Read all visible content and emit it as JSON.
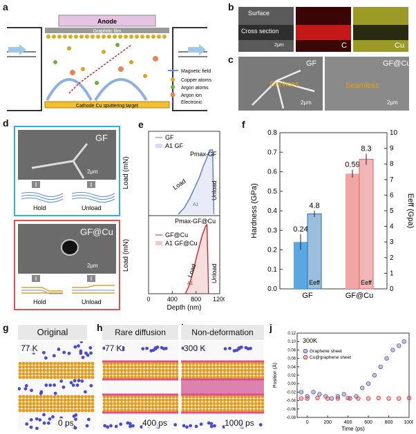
{
  "panels": {
    "a": {
      "label": "a",
      "anode": "Anode",
      "film": "Graphitic film",
      "target": "Cathode Cu sputtering target",
      "legend": [
        "Magnetic field",
        "Copper atoms",
        "Argon atoms",
        "Argon ion",
        "Electronic"
      ],
      "legend_colors": [
        "#5b8fd6",
        "#e0a020",
        "#6fae3a",
        "#e8845a",
        "#666666"
      ]
    },
    "b": {
      "label": "b",
      "surface": "Surface",
      "cross_section": "Cross section",
      "scale": "2μm",
      "map_c": "C",
      "map_cu": "Cu"
    },
    "c": {
      "label": "c",
      "gf": "GF",
      "crevices": "Crevices",
      "scale1": "2μm",
      "gfcu": "GF@Cu",
      "seamless": "Seamless",
      "scale2": "2μm"
    },
    "d": {
      "label": "d",
      "gf": "GF",
      "scale1": "2μm",
      "hold1": "Hold",
      "unload1": "Unload",
      "gfcu": "GF@Cu",
      "scale2": "2μm",
      "hold2": "Hold",
      "unload2": "Unload"
    },
    "e": {
      "label": "e",
      "top_ylabel": "Load (mN)",
      "bot_ylabel": "Load (mN)",
      "xlabel": "Depth (nm)",
      "top_legend": [
        "GF",
        "A1 GF"
      ],
      "bot_legend": [
        "GF@Cu",
        "A1 GF@Cu"
      ],
      "pmax_gf": "Pmax-GF",
      "pmax_gfcu": "Pmax-GF@Cu",
      "load_label": "Load",
      "unload_label": "Unload",
      "a1_label": "A1"
    },
    "f": {
      "label": "f",
      "eff": "Eeff"
    },
    "g": {
      "label": "g",
      "title": "Original",
      "temp": "77 K",
      "time": "0 ps"
    },
    "h": {
      "label": "h",
      "title": "Rare diffusion",
      "temp": "77 K",
      "time": "400 ps"
    },
    "i": {
      "label": "i",
      "title": "Non-deformation",
      "temp": "300 K",
      "time": "1000 ps"
    },
    "j": {
      "label": "j",
      "temp": "300K",
      "legend": [
        "Graphene sheet",
        "Cu@graphene sheet"
      ]
    }
  },
  "chart_data": [
    {
      "id": "e",
      "type": "line",
      "xlabel": "Depth (nm)",
      "xlim": [
        0,
        1200
      ],
      "xticks": [
        0,
        400,
        800,
        1200
      ],
      "subplots": [
        {
          "ylabel": "Load (mN)",
          "series": [
            {
              "name": "GF",
              "color": "#5577cc",
              "x": [
                500,
                600,
                700,
                780,
                860,
                920,
                980,
                1030,
                1080,
                1090,
                1100
              ],
              "y": [
                0,
                0.3,
                0.8,
                1.3,
                1.8,
                2.3,
                2.7,
                3.1,
                3.1,
                1.5,
                0
              ]
            }
          ]
        },
        {
          "ylabel": "Load (mN)",
          "series": [
            {
              "name": "GF@Cu",
              "color": "#cc2222",
              "x": [
                620,
                680,
                720,
                760,
                800,
                850,
                900,
                960,
                985,
                1000,
                1010
              ],
              "y": [
                0,
                1.0,
                2.0,
                3.2,
                4.5,
                6.0,
                7.5,
                8.8,
                9.0,
                4.0,
                0
              ]
            }
          ]
        }
      ]
    },
    {
      "id": "f",
      "type": "bar",
      "categories": [
        "GF",
        "GF@Cu"
      ],
      "ylabel": "Hardness (GPa)",
      "ylim": [
        0,
        0.8
      ],
      "yticks": [
        0,
        0.1,
        0.2,
        0.3,
        0.4,
        0.5,
        0.6,
        0.7,
        0.8
      ],
      "y2label": "Eeff (Gpa)",
      "y2lim": [
        0,
        10
      ],
      "y2ticks": [
        0,
        1,
        2,
        3,
        4,
        5,
        6,
        7,
        8,
        9,
        10
      ],
      "series": [
        {
          "name": "Hardness",
          "values": [
            0.24,
            0.59
          ],
          "errors": [
            0.04,
            0.02
          ],
          "labels": [
            "0.24",
            "0.59"
          ]
        },
        {
          "name": "Eeff",
          "values": [
            4.8,
            8.3
          ],
          "errors": [
            0.2,
            0.35
          ],
          "labels": [
            "4.8",
            "8.3"
          ]
        }
      ]
    },
    {
      "id": "j",
      "type": "scatter",
      "xlabel": "Time (ps)",
      "ylabel": "Position (Å)",
      "xlim": [
        -100,
        1000
      ],
      "ylim": [
        -0.08,
        0.12
      ],
      "xticks": [
        0,
        200,
        400,
        600,
        800,
        1000
      ],
      "yticks": [
        -0.08,
        -0.06,
        -0.04,
        -0.02,
        0.0,
        0.02,
        0.04,
        0.06,
        0.08,
        0.1,
        0.12
      ],
      "series": [
        {
          "name": "Graphene sheet",
          "color": "#5555aa",
          "x": [
            -60,
            0,
            60,
            120,
            180,
            240,
            300,
            360,
            420,
            480,
            540,
            600,
            660,
            720,
            780,
            840,
            900,
            950
          ],
          "y": [
            -0.02,
            -0.03,
            -0.02,
            -0.025,
            -0.03,
            -0.035,
            -0.03,
            -0.025,
            -0.035,
            -0.03,
            -0.01,
            0.0,
            0.02,
            0.04,
            0.06,
            0.08,
            0.09,
            0.1
          ]
        },
        {
          "name": "Cu@graphene sheet",
          "color": "#dd3333",
          "x": [
            -60,
            0,
            100,
            200,
            300,
            400,
            500,
            600,
            700,
            800,
            900,
            1000
          ],
          "y": [
            -0.035,
            -0.035,
            -0.034,
            -0.035,
            -0.035,
            -0.034,
            -0.035,
            -0.035,
            -0.034,
            -0.035,
            -0.035,
            -0.034
          ]
        }
      ]
    }
  ]
}
